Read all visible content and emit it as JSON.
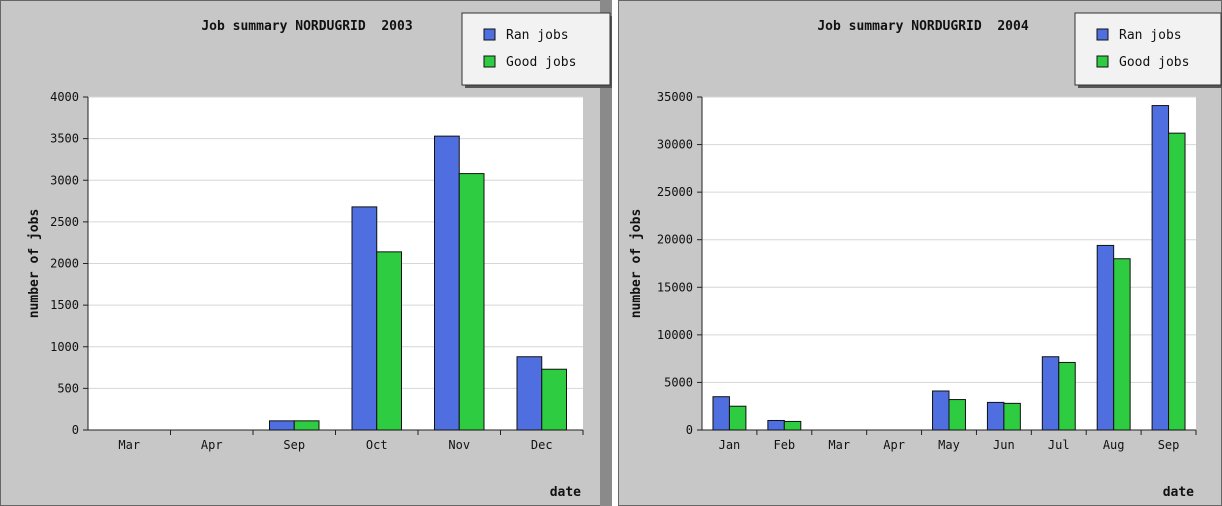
{
  "chart_data": [
    {
      "type": "bar",
      "title": "Job summary NORDUGRID  2003",
      "xlabel": "date",
      "ylabel": "number of jobs",
      "ylim": [
        0,
        4000
      ],
      "yticks": [
        0,
        500,
        1000,
        1500,
        2000,
        2500,
        3000,
        3500,
        4000
      ],
      "categories": [
        "Mar",
        "Apr",
        "Sep",
        "Oct",
        "Nov",
        "Dec"
      ],
      "series": [
        {
          "name": "Ran jobs",
          "color": "#4f6fe0",
          "values": [
            0,
            0,
            110,
            2680,
            3530,
            880
          ]
        },
        {
          "name": "Good jobs",
          "color": "#2ecc40",
          "values": [
            0,
            0,
            110,
            2140,
            3080,
            730
          ]
        }
      ],
      "grid": true,
      "legend": "top-right"
    },
    {
      "type": "bar",
      "title": "Job summary NORDUGRID  2004",
      "xlabel": "date",
      "ylabel": "number of jobs",
      "ylim": [
        0,
        35000
      ],
      "yticks": [
        0,
        5000,
        10000,
        15000,
        20000,
        25000,
        30000,
        35000
      ],
      "categories": [
        "Jan",
        "Feb",
        "Mar",
        "Apr",
        "May",
        "Jun",
        "Jul",
        "Aug",
        "Sep"
      ],
      "series": [
        {
          "name": "Ran jobs",
          "color": "#4f6fe0",
          "values": [
            3500,
            1000,
            0,
            0,
            4100,
            2900,
            7700,
            19400,
            34100
          ]
        },
        {
          "name": "Good jobs",
          "color": "#2ecc40",
          "values": [
            2500,
            900,
            0,
            0,
            3200,
            2800,
            7100,
            18000,
            31200
          ]
        }
      ],
      "grid": true,
      "legend": "top-right"
    }
  ]
}
